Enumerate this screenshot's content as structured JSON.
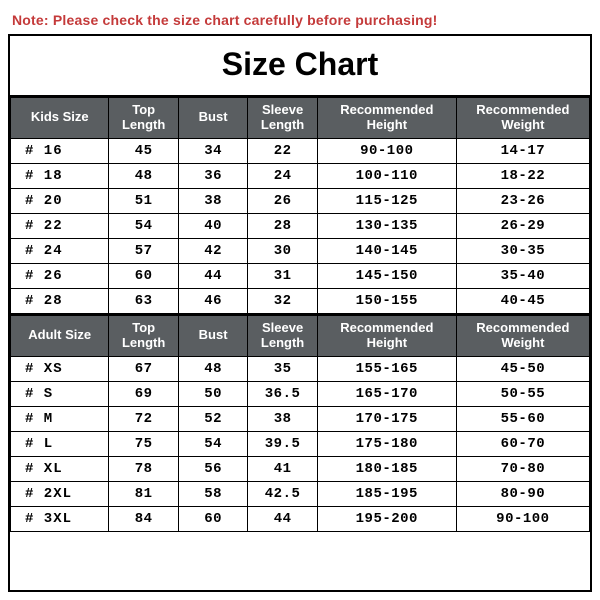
{
  "note": "Note: Please check the size chart carefully before purchasing!",
  "title": "Size Chart",
  "colors": {
    "header_bg": "#5a5e61",
    "header_fg": "#ffffff",
    "border": "#000000",
    "note_color": "#c43a3a",
    "background": "#ffffff"
  },
  "typography": {
    "title_fontsize": 32,
    "title_family": "Arial",
    "header_fontsize": 13,
    "cell_fontsize": 14,
    "cell_family": "Courier New"
  },
  "col_widths_pct": [
    17,
    12,
    12,
    12,
    24,
    23
  ],
  "kids": {
    "columns": [
      "Kids Size",
      "Top Length",
      "Bust",
      "Sleeve Length",
      "Recommended Height",
      "Recommended Weight"
    ],
    "rows": [
      [
        "# 16",
        "45",
        "34",
        "22",
        "90-100",
        "14-17"
      ],
      [
        "# 18",
        "48",
        "36",
        "24",
        "100-110",
        "18-22"
      ],
      [
        "# 20",
        "51",
        "38",
        "26",
        "115-125",
        "23-26"
      ],
      [
        "# 22",
        "54",
        "40",
        "28",
        "130-135",
        "26-29"
      ],
      [
        "# 24",
        "57",
        "42",
        "30",
        "140-145",
        "30-35"
      ],
      [
        "# 26",
        "60",
        "44",
        "31",
        "145-150",
        "35-40"
      ],
      [
        "# 28",
        "63",
        "46",
        "32",
        "150-155",
        "40-45"
      ]
    ]
  },
  "adult": {
    "columns": [
      "Adult Size",
      "Top Length",
      "Bust",
      "Sleeve Length",
      "Recommended Height",
      "Recommended Weight"
    ],
    "rows": [
      [
        "# XS",
        "67",
        "48",
        "35",
        "155-165",
        "45-50"
      ],
      [
        "# S",
        "69",
        "50",
        "36.5",
        "165-170",
        "50-55"
      ],
      [
        "# M",
        "72",
        "52",
        "38",
        "170-175",
        "55-60"
      ],
      [
        "# L",
        "75",
        "54",
        "39.5",
        "175-180",
        "60-70"
      ],
      [
        "# XL",
        "78",
        "56",
        "41",
        "180-185",
        "70-80"
      ],
      [
        "# 2XL",
        "81",
        "58",
        "42.5",
        "185-195",
        "80-90"
      ],
      [
        "# 3XL",
        "84",
        "60",
        "44",
        "195-200",
        "90-100"
      ]
    ]
  }
}
